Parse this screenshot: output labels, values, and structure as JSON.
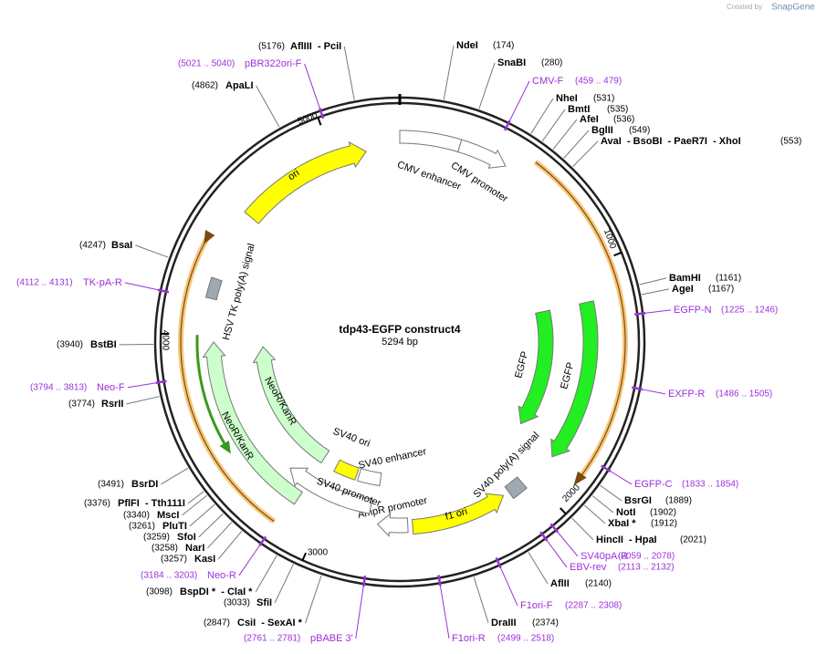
{
  "watermark": {
    "prefix": "Created by",
    "brand": "SnapGene"
  },
  "plasmid": {
    "name": "tdp43-EGFP construct4",
    "length": "5294 bp"
  },
  "scale_ticks": [
    5000,
    1000,
    2000,
    3000,
    4000
  ],
  "features": [
    "ori",
    "CMV enhancer",
    "CMV promoter",
    "EGFP",
    "EGFP",
    "SV40 poly(A) signal",
    "f1 ori",
    "AmpR promoter",
    "SV40 promoter",
    "SV40 ori",
    "SV40 enhancer",
    "NeoR/KanR",
    "NeoR/KanR",
    "HSV TK poly(A) signal"
  ],
  "sites": [
    {
      "name": "AflIII  - PciI",
      "position": "(5176)"
    },
    {
      "name": "NdeI",
      "position": "(174)"
    },
    {
      "name": "SnaBI",
      "position": "(280)"
    },
    {
      "name": "NheI",
      "position": "(531)"
    },
    {
      "name": "BmtI",
      "position": "(535)"
    },
    {
      "name": "AfeI",
      "position": "(536)"
    },
    {
      "name": "BglII",
      "position": "(549)"
    },
    {
      "name": "AvaI  - BsoBI  - PaeR7I  - XhoI",
      "position": "(553)"
    },
    {
      "name": "ApaLI",
      "position": "(4862)"
    },
    {
      "name": "BsaI",
      "position": "(4247)"
    },
    {
      "name": "BstBI",
      "position": "(3940)"
    },
    {
      "name": "RsrII",
      "position": "(3774)"
    },
    {
      "name": "BamHI",
      "position": "(1161)"
    },
    {
      "name": "AgeI",
      "position": "(1167)"
    },
    {
      "name": "BsrDI",
      "position": "(3491)"
    },
    {
      "name": "BsrGI",
      "position": "(1889)"
    },
    {
      "name": "PflFI  - Tth111I",
      "position": "(3376)"
    },
    {
      "name": "NotI",
      "position": "(1902)"
    },
    {
      "name": "MscI",
      "position": "(3340)"
    },
    {
      "name": "XbaI *",
      "position": "(1912)"
    },
    {
      "name": "PluTI",
      "position": "(3261)"
    },
    {
      "name": "SfoI",
      "position": "(3259)"
    },
    {
      "name": "HincII  - HpaI",
      "position": "(2021)"
    },
    {
      "name": "NarI",
      "position": "(3258)"
    },
    {
      "name": "KasI",
      "position": "(3257)"
    },
    {
      "name": "AflII",
      "position": "(2140)"
    },
    {
      "name": "BspDI *  - ClaI *",
      "position": "(3098)"
    },
    {
      "name": "SfiI",
      "position": "(3033)"
    },
    {
      "name": "CsiI  - SexAI *",
      "position": "(2847)"
    },
    {
      "name": "DraIII",
      "position": "(2374)"
    }
  ],
  "primers": [
    {
      "name": "pBR322ori-F",
      "range": "(5021 .. 5040)"
    },
    {
      "name": "CMV-F",
      "range": "(459 .. 479)"
    },
    {
      "name": "TK-pA-R",
      "range": "(4112 .. 4131)"
    },
    {
      "name": "Neo-F",
      "range": "(3794 .. 3813)"
    },
    {
      "name": "EGFP-N",
      "range": "(1225 .. 1246)"
    },
    {
      "name": "EXFP-R",
      "range": "(1486 .. 1505)"
    },
    {
      "name": "EGFP-C",
      "range": "(1833 .. 1854)"
    },
    {
      "name": "SV40pA-R",
      "range": "(2059 .. 2078)"
    },
    {
      "name": "EBV-rev",
      "range": "(2113 .. 2132)"
    },
    {
      "name": "Neo-R",
      "range": "(3184 .. 3203)"
    },
    {
      "name": "F1ori-F",
      "range": "(2287 .. 2308)"
    },
    {
      "name": "pBABE 3'",
      "range": "(2761 .. 2781)"
    },
    {
      "name": "F1ori-R",
      "range": "(2499 .. 2518)"
    }
  ]
}
